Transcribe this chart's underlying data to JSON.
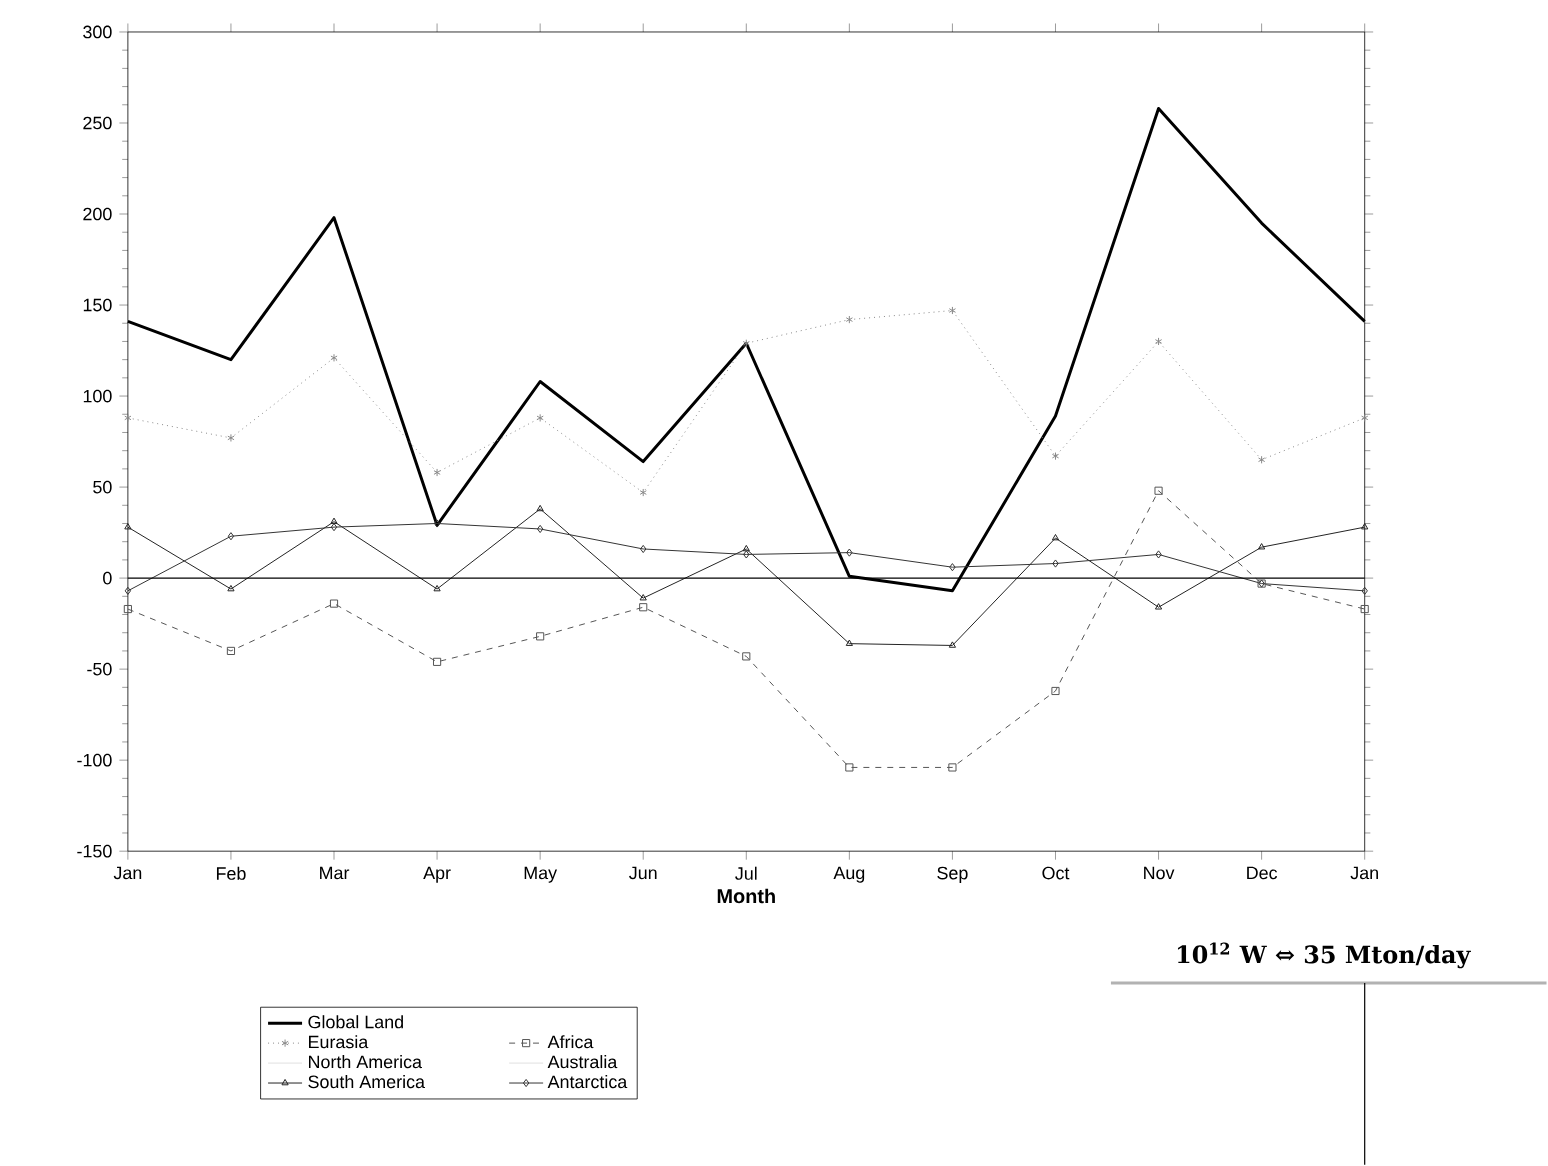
{
  "chart_data": {
    "type": "line",
    "xlabel": "Month",
    "categories": [
      "Jan",
      "Feb",
      "Mar",
      "Apr",
      "May",
      "Jun",
      "Jul",
      "Aug",
      "Sep",
      "Oct",
      "Nov",
      "Dec",
      "Jan"
    ],
    "ylim": [
      -150,
      300
    ],
    "yticks": [
      -150,
      -100,
      -50,
      0,
      50,
      100,
      150,
      200,
      250,
      300
    ],
    "legend": "bottom",
    "grid": false,
    "ref_lines": [
      {
        "axis": "y",
        "value": 0,
        "color": "#000000"
      }
    ],
    "annotations": [
      "10$^{12}$ W ⇔ 35 Mton/day"
    ],
    "series": [
      {
        "name": "Global Land",
        "color": "#000000",
        "marker": "none",
        "line_style": "solid",
        "values": [
          141,
          120,
          198,
          29,
          108,
          64,
          129,
          1,
          -7,
          89,
          258,
          195,
          141
        ]
      },
      {
        "name": "Eurasia",
        "color": "#888888",
        "marker": "cross",
        "line_style": "dotted",
        "values": [
          88,
          77,
          121,
          58,
          88,
          47,
          129,
          142,
          147,
          67,
          130,
          65,
          88
        ]
      },
      {
        "name": "Africa",
        "color": "#555555",
        "marker": "square",
        "line_style": "dashed",
        "values": [
          -17,
          -40,
          -14,
          -46,
          -32,
          -16,
          -43,
          -104,
          -104,
          -62,
          48,
          -3,
          -17
        ]
      },
      {
        "name": "North America",
        "color": "#e0e0e0",
        "marker": "none",
        "line_style": "solid",
        "values": [
          null,
          null,
          null,
          null,
          null,
          null,
          null,
          null,
          null,
          null,
          null,
          null,
          null
        ]
      },
      {
        "name": "Australia",
        "color": "#e0e0e0",
        "marker": "none",
        "line_style": "solid",
        "values": [
          null,
          null,
          null,
          null,
          null,
          null,
          null,
          null,
          null,
          null,
          null,
          null,
          null
        ]
      },
      {
        "name": "South America",
        "color": "#222222",
        "marker": "triangle",
        "line_style": "solid",
        "values": [
          28,
          -6,
          31,
          -6,
          38,
          -11,
          16,
          -36,
          -37,
          22,
          -16,
          17,
          28
        ]
      },
      {
        "name": "Antarctica",
        "color": "#333333",
        "marker": "diamond",
        "line_style": "solid",
        "values": [
          -7,
          23,
          28,
          30,
          27,
          16,
          13,
          14,
          6,
          8,
          13,
          -3,
          -7
        ]
      }
    ]
  }
}
